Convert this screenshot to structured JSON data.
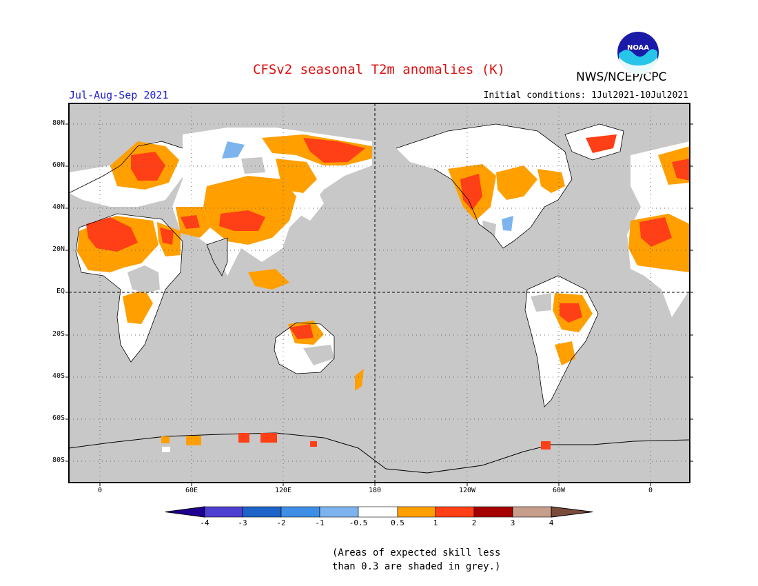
{
  "header": {
    "title": "CFSv2 seasonal T2m anomalies (K)",
    "period": "Jul-Aug-Sep 2021",
    "initial_conditions": "Initial conditions: 1Jul2021-10Jul2021",
    "agency": "NWS/NCEP/CPC",
    "logo_text": "NOAA"
  },
  "map": {
    "projection": "equirectangular",
    "center_longitude": 180,
    "dashed_reference_lines": [
      "EQ",
      "180"
    ],
    "lat_labels": [
      "80N",
      "60N",
      "40N",
      "20N",
      "EQ",
      "20S",
      "40S",
      "60S",
      "80S"
    ],
    "lon_labels": [
      "0",
      "60E",
      "120E",
      "180",
      "120W",
      "60W",
      "0"
    ]
  },
  "legend": {
    "tick_labels": [
      "-4",
      "-3",
      "-2",
      "-1",
      "-0.5",
      "0.5",
      "1",
      "2",
      "3",
      "4"
    ],
    "colors": {
      "lt_-4": "#1e0090",
      "-4_-3": "#4f3fd0",
      "-3_-2": "#1d63c8",
      "-2_-1": "#3e8ee6",
      "-1_-0.5": "#7db4ee",
      "-0.5_0.5": "#ffffff",
      "0.5_1": "#ff9f00",
      "1_2": "#ff3f16",
      "2_3": "#a50000",
      "3_4": "#c79d8c",
      "gt_4": "#7a4b3a"
    },
    "low_skill_color": "#c8c8c8"
  },
  "note": {
    "line1": "(Areas of expected skill less",
    "line2": "than 0.3 are shaded in grey.)"
  }
}
